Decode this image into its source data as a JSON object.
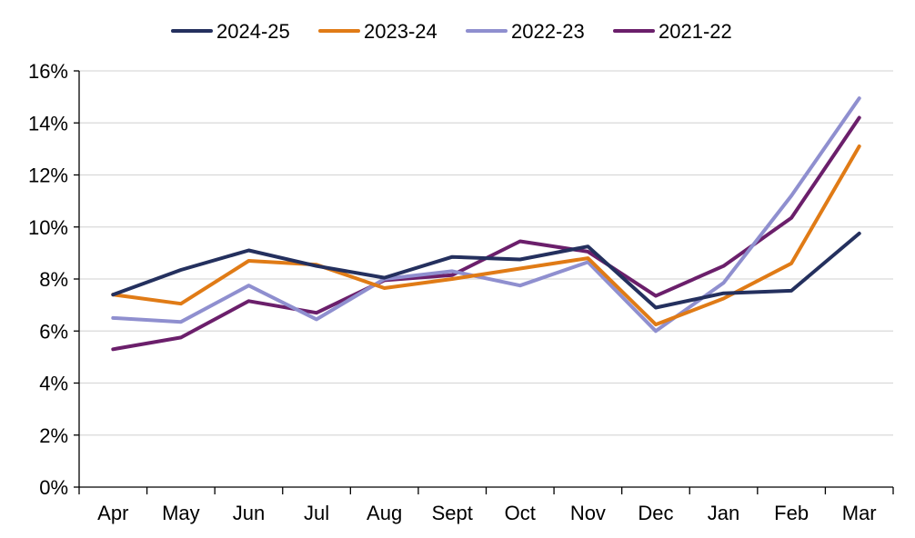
{
  "chart_data": {
    "type": "line",
    "title": "",
    "xlabel": "",
    "ylabel": "",
    "categories": [
      "Apr",
      "May",
      "Jun",
      "Jul",
      "Aug",
      "Sept",
      "Oct",
      "Nov",
      "Dec",
      "Jan",
      "Feb",
      "Mar"
    ],
    "ylim": [
      0,
      16
    ],
    "yticks": [
      0,
      2,
      4,
      6,
      8,
      10,
      12,
      14,
      16
    ],
    "ytick_labels": [
      "0%",
      "2%",
      "4%",
      "6%",
      "8%",
      "10%",
      "12%",
      "14%",
      "16%"
    ],
    "grid": true,
    "legend_position": "top",
    "series": [
      {
        "name": "2024-25",
        "color": "#24305e",
        "values": [
          7.4,
          8.35,
          9.1,
          8.5,
          8.05,
          8.85,
          8.75,
          9.25,
          6.9,
          7.45,
          7.55,
          9.75
        ]
      },
      {
        "name": "2023-24",
        "color": "#e07b16",
        "values": [
          7.4,
          7.05,
          8.7,
          8.55,
          7.65,
          8.0,
          8.4,
          8.8,
          6.25,
          7.25,
          8.6,
          13.1
        ]
      },
      {
        "name": "2022-23",
        "color": "#8f8fcf",
        "values": [
          6.5,
          6.35,
          7.75,
          6.45,
          8.0,
          8.3,
          7.75,
          8.65,
          6.0,
          7.85,
          11.2,
          14.95
        ]
      },
      {
        "name": "2021-22",
        "color": "#6b1f6b",
        "values": [
          5.3,
          5.75,
          7.15,
          6.7,
          7.95,
          8.15,
          9.45,
          9.05,
          7.35,
          8.5,
          10.35,
          14.2
        ]
      }
    ]
  }
}
